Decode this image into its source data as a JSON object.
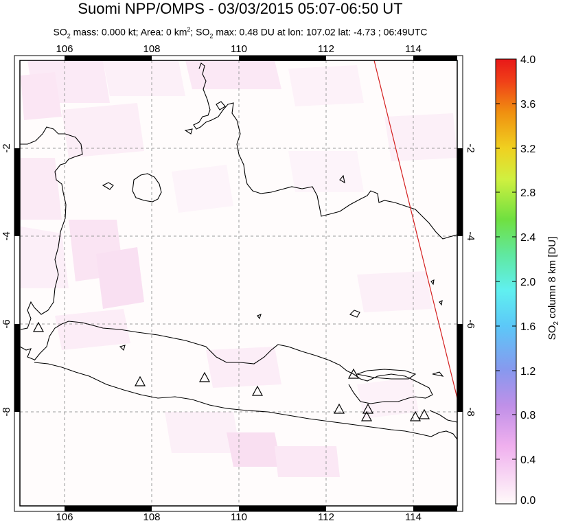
{
  "title": "Suomi NPP/OMPS - 03/03/2015 05:07-06:50 UT",
  "subtitle": {
    "so2_label": "SO",
    "so2_sub": "2",
    "mass_area_text": " mass: 0.000 kt; Area: 0 km",
    "area_sup": "2",
    "so2max_prefix": "; SO",
    "so2max_sub": "2",
    "so2max_text": " max: 0.48 DU at lon: 107.02 lat: -4.73 ; 06:49UTC"
  },
  "map": {
    "lon_ticks": [
      "106",
      "108",
      "110",
      "112",
      "114"
    ],
    "lat_ticks_left": [
      "-2",
      "-4",
      "-6",
      "-8"
    ],
    "lat_ticks_right": [
      "-2",
      "-4",
      "-6",
      "-8"
    ],
    "lon_range": [
      105,
      115
    ],
    "lat_range": [
      -10,
      0
    ],
    "volcano_symbol": "triangle-marker",
    "track_line_color": "#d42020",
    "coast_color": "#000000",
    "grid_style": "dashed"
  },
  "colorbar": {
    "ticks": [
      "4.0",
      "3.6",
      "3.2",
      "2.8",
      "2.4",
      "2.0",
      "1.6",
      "1.2",
      "0.8",
      "0.4",
      "0.0"
    ],
    "label_prefix": "SO",
    "label_sub": "2",
    "label_suffix": " column 8 km [DU]",
    "range": [
      0.0,
      4.0
    ],
    "colors": [
      "#fffafa",
      "#f0b0ee",
      "#c090e8",
      "#8898ee",
      "#5cc8f8",
      "#60f0f0",
      "#60e8a0",
      "#70e040",
      "#d0f040",
      "#f0d020",
      "#f09010",
      "#f04018",
      "#e81818"
    ]
  }
}
